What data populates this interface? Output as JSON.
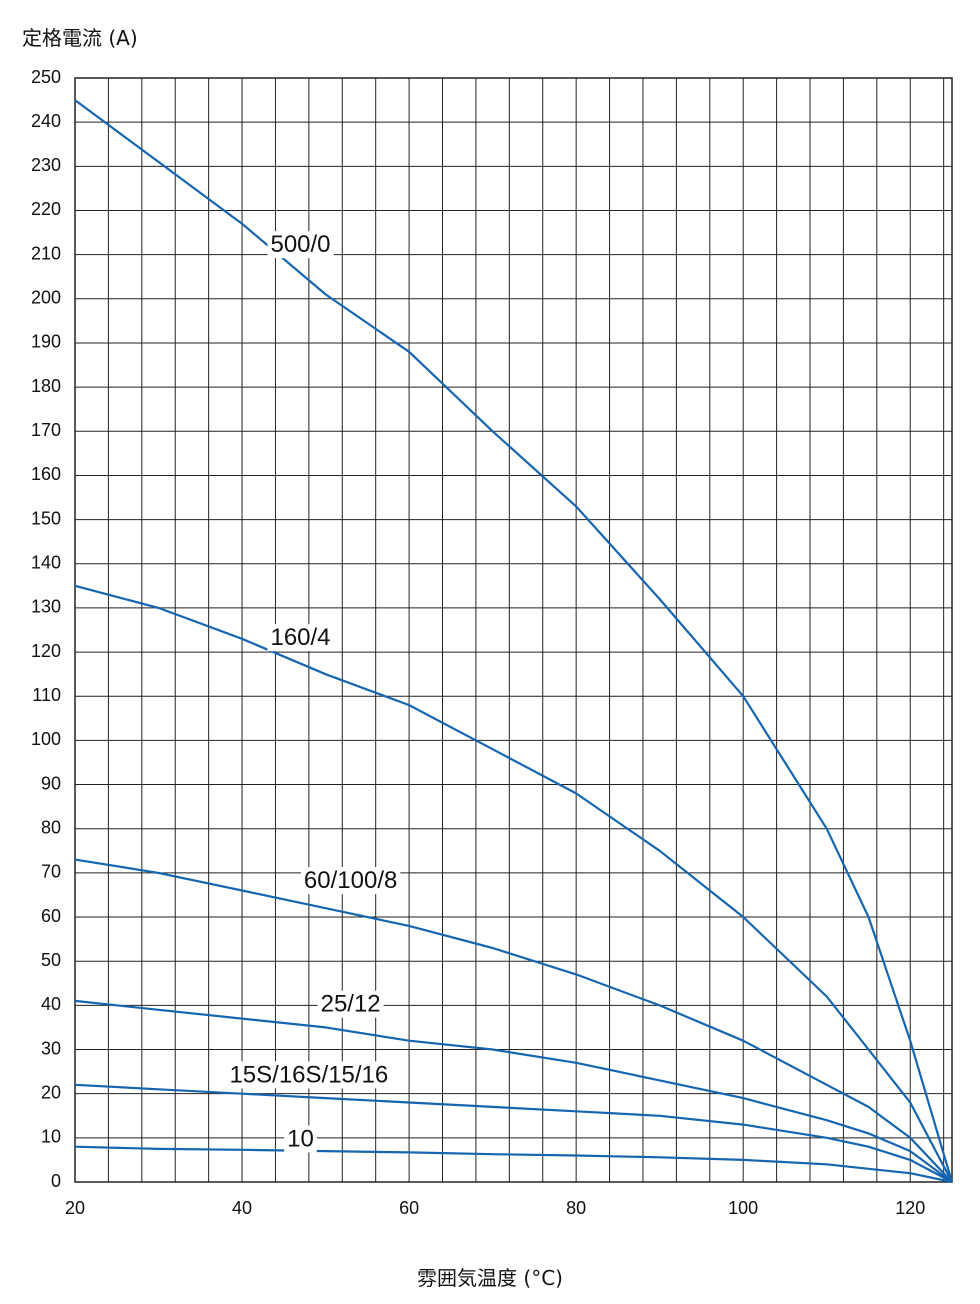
{
  "chart_data": {
    "type": "line",
    "ylabel": "定格電流 (A)",
    "xlabel": "雰囲気温度 (°C)",
    "xlim": [
      20,
      125
    ],
    "ylim": [
      0,
      250
    ],
    "x_ticks": [
      20,
      40,
      60,
      80,
      100,
      120
    ],
    "y_ticks": [
      0,
      10,
      20,
      30,
      40,
      50,
      60,
      70,
      80,
      90,
      100,
      110,
      120,
      130,
      140,
      150,
      160,
      170,
      180,
      190,
      200,
      210,
      220,
      230,
      240,
      250
    ],
    "x_gridlines": [
      20,
      24,
      28,
      32,
      36,
      40,
      44,
      48,
      52,
      56,
      60,
      64,
      68,
      72,
      76,
      80,
      84,
      88,
      92,
      96,
      100,
      104,
      108,
      112,
      116,
      120,
      124
    ],
    "grid": true,
    "line_color": "#1565b0",
    "series": [
      {
        "name": "500/0",
        "x": [
          20,
          30,
          40,
          50,
          60,
          70,
          80,
          90,
          100,
          110,
          115,
          120,
          125
        ],
        "values": [
          245,
          231,
          217,
          201,
          188,
          170,
          153,
          132,
          110,
          80,
          60,
          32,
          0
        ]
      },
      {
        "name": "160/4",
        "x": [
          20,
          30,
          40,
          50,
          60,
          70,
          80,
          90,
          100,
          110,
          115,
          120,
          125
        ],
        "values": [
          135,
          130,
          123,
          115,
          108,
          98,
          88,
          75,
          60,
          42,
          30,
          18,
          0
        ]
      },
      {
        "name": "60/100/8",
        "x": [
          20,
          30,
          40,
          50,
          60,
          70,
          80,
          90,
          100,
          110,
          115,
          120,
          125
        ],
        "values": [
          73,
          70,
          66,
          62,
          58,
          53,
          47,
          40,
          32,
          22,
          17,
          10,
          0
        ]
      },
      {
        "name": "25/12",
        "x": [
          20,
          30,
          40,
          50,
          60,
          70,
          80,
          90,
          100,
          110,
          115,
          120,
          125
        ],
        "values": [
          41,
          39,
          37,
          35,
          32,
          30,
          27,
          23,
          19,
          14,
          11,
          7,
          0
        ]
      },
      {
        "name": "15S/16S/15/16",
        "x": [
          20,
          30,
          40,
          50,
          60,
          70,
          80,
          90,
          100,
          110,
          115,
          120,
          125
        ],
        "values": [
          22,
          21,
          20,
          19,
          18,
          17,
          16,
          15,
          13,
          10,
          8,
          5,
          0
        ]
      },
      {
        "name": "10",
        "x": [
          20,
          30,
          40,
          50,
          60,
          70,
          80,
          90,
          100,
          110,
          115,
          120,
          125
        ],
        "values": [
          8,
          7.5,
          7.3,
          7,
          6.7,
          6.3,
          6,
          5.6,
          5,
          4,
          3,
          2,
          0
        ]
      }
    ],
    "series_labels": [
      {
        "text": "500/0",
        "x": 47,
        "y": 212
      },
      {
        "text": "160/4",
        "x": 47,
        "y": 123
      },
      {
        "text": "60/100/8",
        "x": 53,
        "y": 68
      },
      {
        "text": "25/12",
        "x": 53,
        "y": 40
      },
      {
        "text": "15S/16S/15/16",
        "x": 48,
        "y": 24
      },
      {
        "text": "10",
        "x": 47,
        "y": 9.5
      }
    ]
  }
}
